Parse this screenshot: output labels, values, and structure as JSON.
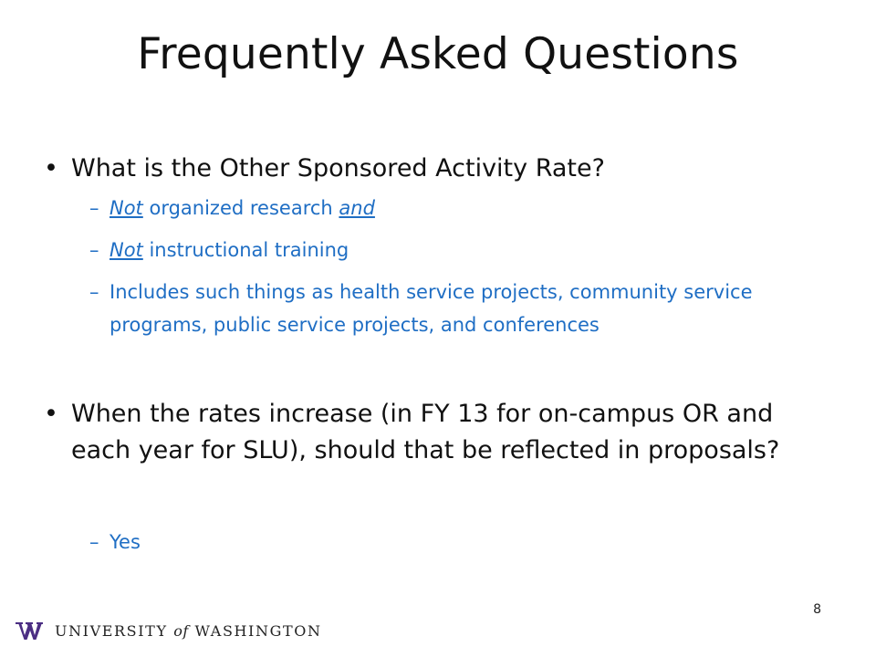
{
  "slide": {
    "title": "Frequently Asked Questions",
    "bullets": [
      {
        "text": "What is the Other Sponsored Activity Rate?",
        "subs": [
          {
            "parts": [
              "Not",
              " organized research ",
              "and"
            ]
          },
          {
            "parts": [
              "Not",
              " instructional training"
            ]
          },
          {
            "text": "Includes such things as health service projects, community service programs, public service projects, and conferences"
          }
        ]
      },
      {
        "text": "When the rates increase (in FY 13 for on-campus OR and each year for SLU), should that be reflected in proposals?",
        "subs": [
          {
            "text": "Yes"
          }
        ]
      }
    ],
    "bullet_glyph": "•",
    "dash_glyph": "–",
    "page_number": "8"
  },
  "footer": {
    "logo_text_1": "UNIVERSITY ",
    "logo_text_of": "of",
    "logo_text_2": " WASHINGTON",
    "logo_icon": "uw-w-logo-icon",
    "logo_color": "#4b2e83"
  },
  "colors": {
    "sub_text": "#1f6ec4",
    "main_text": "#111111"
  }
}
